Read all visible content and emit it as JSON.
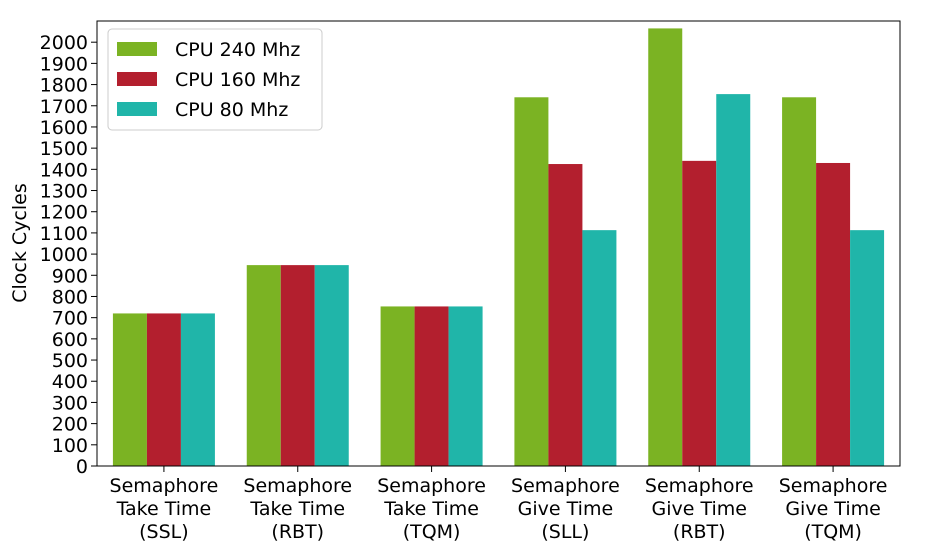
{
  "chart_data": {
    "type": "bar",
    "title": "",
    "xlabel": "",
    "ylabel": "Clock Cycles",
    "ylim": [
      0,
      2100
    ],
    "yticks": [
      0,
      100,
      200,
      300,
      400,
      500,
      600,
      700,
      800,
      900,
      1000,
      1100,
      1200,
      1300,
      1400,
      1500,
      1600,
      1700,
      1800,
      1900,
      2000
    ],
    "grid": false,
    "legend_position": "top-left",
    "categories": [
      [
        "Semaphore",
        "Take Time",
        "(SSL)"
      ],
      [
        "Semaphore",
        "Take Time",
        "(RBT)"
      ],
      [
        "Semaphore",
        "Take Time",
        "(TQM)"
      ],
      [
        "Semaphore",
        "Give Time",
        "(SLL)"
      ],
      [
        "Semaphore",
        "Give Time",
        "(RBT)"
      ],
      [
        "Semaphore",
        "Give Time",
        "(TQM)"
      ]
    ],
    "series": [
      {
        "name": "CPU 240 Mhz",
        "color": "#7bb323",
        "values": [
          720,
          948,
          753,
          1740,
          2065,
          1740
        ]
      },
      {
        "name": "CPU 160 Mhz",
        "color": "#b31f2e",
        "values": [
          720,
          948,
          753,
          1425,
          1440,
          1430
        ]
      },
      {
        "name": "CPU 80 Mhz",
        "color": "#20b5a9",
        "values": [
          720,
          948,
          753,
          1113,
          1755,
          1113
        ]
      }
    ]
  }
}
